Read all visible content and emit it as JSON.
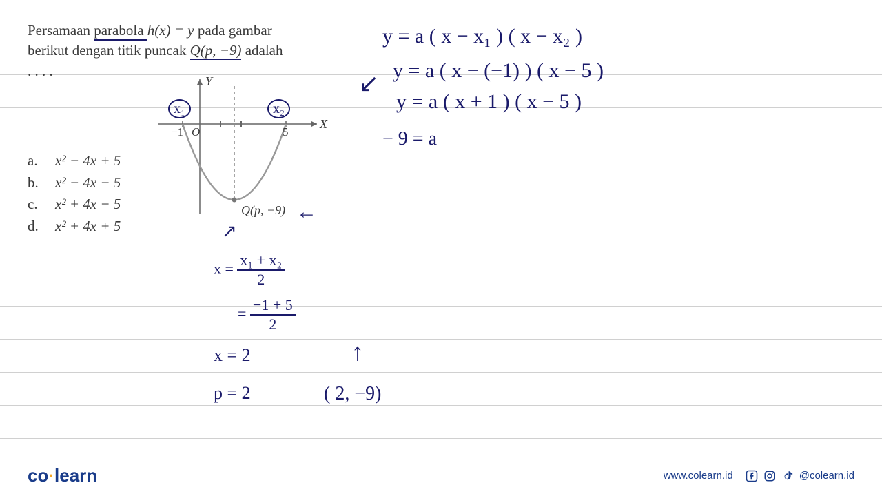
{
  "question": {
    "line1_pre": "Persamaan ",
    "line1_underlined": "parabola ",
    "line1_eq": "h(x) = y",
    "line1_post": " pada gambar",
    "line2_pre": "berikut dengan titik puncak ",
    "line2_q": "Q(p, −9)",
    "line2_post": " adalah",
    "dots": ". . . ."
  },
  "choices": {
    "a": {
      "label": "a.",
      "expr": "x² − 4x + 5"
    },
    "b": {
      "label": "b.",
      "expr": "x² − 4x − 5"
    },
    "c": {
      "label": "c.",
      "expr": "x² + 4x − 5"
    },
    "d": {
      "label": "d.",
      "expr": "x² + 4x + 5"
    }
  },
  "graph": {
    "y_label": "Y",
    "x_label": "X",
    "origin": "O",
    "x1_tick": "−1",
    "x2_tick": "5",
    "vertex_label": "Q(p, −9)",
    "x1_anno": "x₁",
    "x2_anno": "x₂",
    "axis_color": "#666666",
    "curve_color": "#999999",
    "dash_color": "#888888"
  },
  "handwriting": {
    "eq1": "y = a ( x − x₁ ) ( x − x₂ )",
    "eq2": "y = a ( x − (−1) ) ( x − 5 )",
    "eq3": "y = a ( x + 1 )   ( x − 5 )",
    "eq4": "− 9 =  a",
    "arrow_left": "↙",
    "arrow_vertex": "←",
    "arrow_up_small": "↗",
    "xmid_lhs": "x =",
    "xmid_num": "x₁ + x₂",
    "xmid_den": "2",
    "xmid2_num": "−1 + 5",
    "xmid2_den": "2",
    "xmid3": "x  =   2",
    "p_eq": "p = 2",
    "point": "( 2, −9)",
    "arrow_up": "↑",
    "eq_sign": "="
  },
  "footer": {
    "logo_co": "co",
    "logo_learn": "learn",
    "url": "www.colearn.id",
    "handle": "@colearn.id"
  },
  "style": {
    "line_color": "#d0d0d0",
    "line_spacing": 48,
    "line_start": 108,
    "line_count": 12,
    "hw_color": "#1a1a6a",
    "print_color": "#3a3a3a"
  }
}
